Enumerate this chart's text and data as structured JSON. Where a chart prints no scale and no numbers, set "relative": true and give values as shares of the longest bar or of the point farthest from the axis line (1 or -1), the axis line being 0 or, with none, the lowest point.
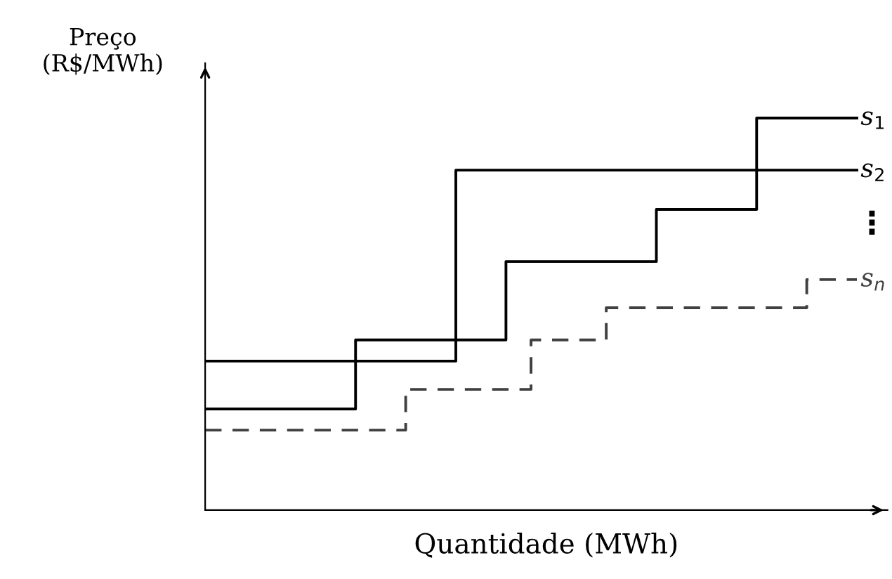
{
  "chart_data": {
    "type": "step",
    "relative": true,
    "xlabel": "Quantidade (MWh)",
    "ylabel": "Preço\n(R$/MWh)",
    "legend": false,
    "marker": "none",
    "categories": [
      null,
      null,
      null,
      null,
      null,
      null,
      null,
      null,
      null,
      null,
      null,
      null,
      null,
      null,
      null,
      null,
      null,
      null,
      null,
      null,
      null,
      null,
      null,
      null,
      null,
      null,
      null
    ],
    "series": [
      {
        "name": "s$_{1}$",
        "color": "#000000",
        "line_style": "solid",
        "values": [
          0.258,
          0.258,
          0.258,
          0.258,
          0.258,
          0.258,
          0.434,
          0.434,
          0.434,
          0.434,
          0.434,
          0.434,
          0.634,
          0.634,
          0.634,
          0.634,
          0.634,
          0.634,
          0.767,
          0.767,
          0.767,
          0.767,
          1.0,
          1.0,
          1.0,
          1.0,
          1.0
        ]
      },
      {
        "name": "s$_{2}$",
        "color": "#000000",
        "line_style": "solid",
        "values": [
          0.38,
          0.38,
          0.38,
          0.38,
          0.38,
          0.38,
          0.38,
          0.38,
          0.38,
          0.38,
          0.867,
          0.867,
          0.867,
          0.867,
          0.867,
          0.867,
          0.867,
          0.867,
          0.867,
          0.867,
          0.867,
          0.867,
          0.867,
          0.867,
          0.867,
          0.867,
          0.867
        ]
      },
      {
        "name": "s$_{n}$",
        "color": "#404040",
        "line_style": "dashed",
        "values": [
          0.204,
          0.204,
          0.204,
          0.204,
          0.204,
          0.204,
          0.204,
          0.204,
          0.308,
          0.308,
          0.308,
          0.308,
          0.308,
          0.434,
          0.434,
          0.434,
          0.516,
          0.516,
          0.516,
          0.516,
          0.516,
          0.516,
          0.516,
          0.516,
          0.588,
          0.588,
          0.588
        ]
      }
    ],
    "annotations": [
      "⋮"
    ]
  }
}
